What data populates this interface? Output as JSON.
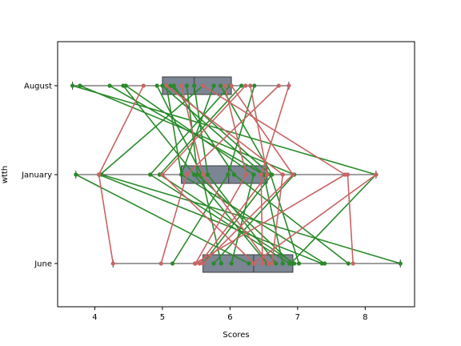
{
  "chart_data": {
    "type": "box",
    "xlabel": "Scores",
    "ylabel": "wtth",
    "xlim": [
      3.45,
      8.73
    ],
    "x_ticks": [
      4,
      5,
      6,
      7,
      8
    ],
    "x_tick_labels": [
      "4",
      "5",
      "6",
      "7",
      "8"
    ],
    "categories": [
      "August",
      "January",
      "June"
    ],
    "grid": false,
    "legend": "none",
    "boxes": [
      {
        "category": "August",
        "whisker_low": 3.67,
        "q1": 5.0,
        "median": 5.47,
        "q3": 6.02,
        "whisker_high": 6.87
      },
      {
        "category": "January",
        "whisker_low": 3.72,
        "q1": 5.28,
        "median": 5.98,
        "q3": 6.55,
        "whisker_high": 8.16
      },
      {
        "category": "June",
        "whisker_low": 4.27,
        "q1": 5.6,
        "median": 6.35,
        "q3": 6.93,
        "whisker_high": 8.52
      }
    ],
    "series": [
      {
        "color": "#2a8a2a",
        "segments": [
          {
            "from": "August",
            "to": "January",
            "x1": 3.67,
            "x2": 8.16
          },
          {
            "from": "August",
            "to": "January",
            "x1": 3.78,
            "x2": 6.95
          },
          {
            "from": "August",
            "to": "January",
            "x1": 4.22,
            "x2": 6.5
          },
          {
            "from": "August",
            "to": "January",
            "x1": 4.42,
            "x2": 5.47
          },
          {
            "from": "August",
            "to": "January",
            "x1": 4.46,
            "x2": 6.35
          },
          {
            "from": "August",
            "to": "January",
            "x1": 4.92,
            "x2": 5.58
          },
          {
            "from": "August",
            "to": "January",
            "x1": 5.0,
            "x2": 6.5
          },
          {
            "from": "August",
            "to": "January",
            "x1": 5.06,
            "x2": 5.28
          },
          {
            "from": "August",
            "to": "January",
            "x1": 5.12,
            "x2": 6.6
          },
          {
            "from": "August",
            "to": "January",
            "x1": 5.17,
            "x2": 6.06
          },
          {
            "from": "August",
            "to": "January",
            "x1": 5.36,
            "x2": 5.52
          },
          {
            "from": "August",
            "to": "January",
            "x1": 5.47,
            "x2": 5.67
          },
          {
            "from": "August",
            "to": "January",
            "x1": 5.6,
            "x2": 4.08
          },
          {
            "from": "August",
            "to": "January",
            "x1": 5.76,
            "x2": 5.28
          },
          {
            "from": "August",
            "to": "January",
            "x1": 5.86,
            "x2": 6.62
          },
          {
            "from": "August",
            "to": "January",
            "x1": 6.0,
            "x2": 4.82
          },
          {
            "from": "August",
            "to": "January",
            "x1": 6.17,
            "x2": 4.96
          },
          {
            "from": "August",
            "to": "January",
            "x1": 6.36,
            "x2": 5.97
          },
          {
            "from": "January",
            "to": "June",
            "x1": 3.72,
            "x2": 6.28
          },
          {
            "from": "January",
            "to": "June",
            "x1": 4.06,
            "x2": 7.36
          },
          {
            "from": "January",
            "to": "June",
            "x1": 4.1,
            "x2": 8.52
          },
          {
            "from": "January",
            "to": "June",
            "x1": 4.82,
            "x2": 6.88
          },
          {
            "from": "January",
            "to": "June",
            "x1": 4.96,
            "x2": 6.95
          },
          {
            "from": "January",
            "to": "June",
            "x1": 5.28,
            "x2": 7.4
          },
          {
            "from": "January",
            "to": "June",
            "x1": 5.47,
            "x2": 6.55
          },
          {
            "from": "January",
            "to": "June",
            "x1": 5.52,
            "x2": 6.92
          },
          {
            "from": "January",
            "to": "June",
            "x1": 5.58,
            "x2": 5.87
          },
          {
            "from": "January",
            "to": "June",
            "x1": 5.67,
            "x2": 6.68
          },
          {
            "from": "January",
            "to": "June",
            "x1": 5.97,
            "x2": 5.15
          },
          {
            "from": "January",
            "to": "June",
            "x1": 6.06,
            "x2": 7.75
          },
          {
            "from": "January",
            "to": "June",
            "x1": 6.35,
            "x2": 6.02
          },
          {
            "from": "January",
            "to": "June",
            "x1": 6.5,
            "x2": 6.78
          },
          {
            "from": "January",
            "to": "June",
            "x1": 6.6,
            "x2": 7.02
          },
          {
            "from": "January",
            "to": "June",
            "x1": 6.62,
            "x2": 5.6
          },
          {
            "from": "January",
            "to": "June",
            "x1": 6.95,
            "x2": 5.76
          },
          {
            "from": "January",
            "to": "June",
            "x1": 8.16,
            "x2": 6.9
          }
        ]
      },
      {
        "color": "#c86464",
        "segments": [
          {
            "from": "August",
            "to": "January",
            "x1": 4.72,
            "x2": 4.06
          },
          {
            "from": "August",
            "to": "January",
            "x1": 5.06,
            "x2": 6.78
          },
          {
            "from": "August",
            "to": "January",
            "x1": 5.28,
            "x2": 5.6
          },
          {
            "from": "August",
            "to": "January",
            "x1": 5.6,
            "x2": 7.7
          },
          {
            "from": "August",
            "to": "January",
            "x1": 5.92,
            "x2": 6.24
          },
          {
            "from": "August",
            "to": "January",
            "x1": 6.02,
            "x2": 6.93
          },
          {
            "from": "August",
            "to": "January",
            "x1": 6.23,
            "x2": 5.0
          },
          {
            "from": "August",
            "to": "January",
            "x1": 6.3,
            "x2": 6.55
          },
          {
            "from": "August",
            "to": "January",
            "x1": 6.72,
            "x2": 5.36
          },
          {
            "from": "August",
            "to": "January",
            "x1": 6.87,
            "x2": 6.46
          },
          {
            "from": "January",
            "to": "June",
            "x1": 4.06,
            "x2": 4.27
          },
          {
            "from": "January",
            "to": "June",
            "x1": 5.0,
            "x2": 6.36
          },
          {
            "from": "January",
            "to": "June",
            "x1": 5.36,
            "x2": 4.98
          },
          {
            "from": "January",
            "to": "June",
            "x1": 5.6,
            "x2": 6.57
          },
          {
            "from": "January",
            "to": "June",
            "x1": 6.24,
            "x2": 5.49
          },
          {
            "from": "January",
            "to": "June",
            "x1": 6.46,
            "x2": 6.48
          },
          {
            "from": "January",
            "to": "June",
            "x1": 6.55,
            "x2": 5.55
          },
          {
            "from": "January",
            "to": "June",
            "x1": 6.78,
            "x2": 6.62
          },
          {
            "from": "January",
            "to": "June",
            "x1": 6.93,
            "x2": 5.6
          },
          {
            "from": "January",
            "to": "June",
            "x1": 7.7,
            "x2": 5.48
          },
          {
            "from": "January",
            "to": "June",
            "x1": 7.74,
            "x2": 7.82
          },
          {
            "from": "January",
            "to": "June",
            "x1": 8.16,
            "x2": 6.35
          }
        ]
      }
    ]
  }
}
